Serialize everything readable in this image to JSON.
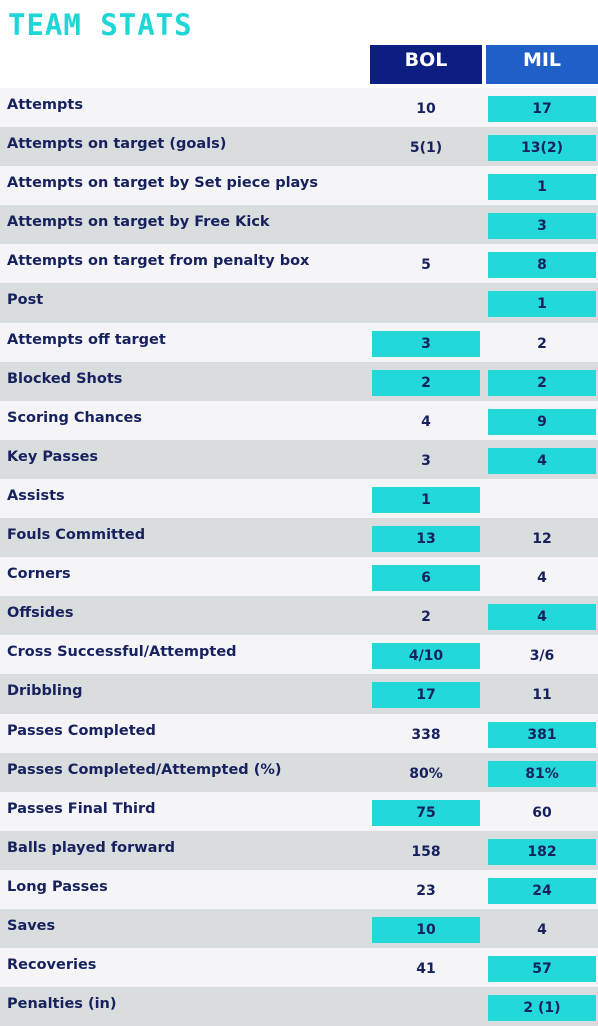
{
  "title": "TEAM STATS",
  "teams": {
    "home": "BOL",
    "away": "MIL"
  },
  "colors": {
    "title": "#1fd6d6",
    "home_header": "#0c1e7f",
    "away_header": "#1f5fc7",
    "highlight": "#22d8d8",
    "text": "#16215e"
  },
  "rows": [
    {
      "label": "Attempts",
      "bol": "10",
      "mil": "17",
      "hl": "mil"
    },
    {
      "label": "Attempts on target (goals)",
      "bol": "5(1)",
      "mil": "13(2)",
      "hl": "mil"
    },
    {
      "label": "Attempts on target by Set piece plays",
      "bol": "",
      "mil": "1",
      "hl": "mil"
    },
    {
      "label": "Attempts on target by Free Kick",
      "bol": "",
      "mil": "3",
      "hl": "mil"
    },
    {
      "label": "Attempts on target from penalty box",
      "bol": "5",
      "mil": "8",
      "hl": "mil"
    },
    {
      "label": "Post",
      "bol": "",
      "mil": "1",
      "hl": "mil"
    },
    {
      "label": "Attempts off target",
      "bol": "3",
      "mil": "2",
      "hl": "bol"
    },
    {
      "label": "Blocked Shots",
      "bol": "2",
      "mil": "2",
      "hl": "both"
    },
    {
      "label": "Scoring Chances",
      "bol": "4",
      "mil": "9",
      "hl": "mil"
    },
    {
      "label": "Key Passes",
      "bol": "3",
      "mil": "4",
      "hl": "mil"
    },
    {
      "label": "Assists",
      "bol": "1",
      "mil": "",
      "hl": "bol"
    },
    {
      "label": "Fouls Committed",
      "bol": "13",
      "mil": "12",
      "hl": "bol"
    },
    {
      "label": "Corners",
      "bol": "6",
      "mil": "4",
      "hl": "bol"
    },
    {
      "label": "Offsides",
      "bol": "2",
      "mil": "4",
      "hl": "mil"
    },
    {
      "label": "Cross Successful/Attempted",
      "bol": "4/10",
      "mil": "3/6",
      "hl": "bol"
    },
    {
      "label": "Dribbling",
      "bol": "17",
      "mil": "11",
      "hl": "bol"
    },
    {
      "label": "Passes Completed",
      "bol": "338",
      "mil": "381",
      "hl": "mil"
    },
    {
      "label": "Passes Completed/Attempted (%)",
      "bol": "80%",
      "mil": "81%",
      "hl": "mil"
    },
    {
      "label": "Passes Final Third",
      "bol": "75",
      "mil": "60",
      "hl": "bol"
    },
    {
      "label": "Balls played forward",
      "bol": "158",
      "mil": "182",
      "hl": "mil"
    },
    {
      "label": "Long Passes",
      "bol": "23",
      "mil": "24",
      "hl": "mil"
    },
    {
      "label": "Saves",
      "bol": "10",
      "mil": "4",
      "hl": "bol"
    },
    {
      "label": "Recoveries",
      "bol": "41",
      "mil": "57",
      "hl": "mil"
    },
    {
      "label": "Penalties (in)",
      "bol": "",
      "mil": "2 (1)",
      "hl": "mil"
    }
  ]
}
